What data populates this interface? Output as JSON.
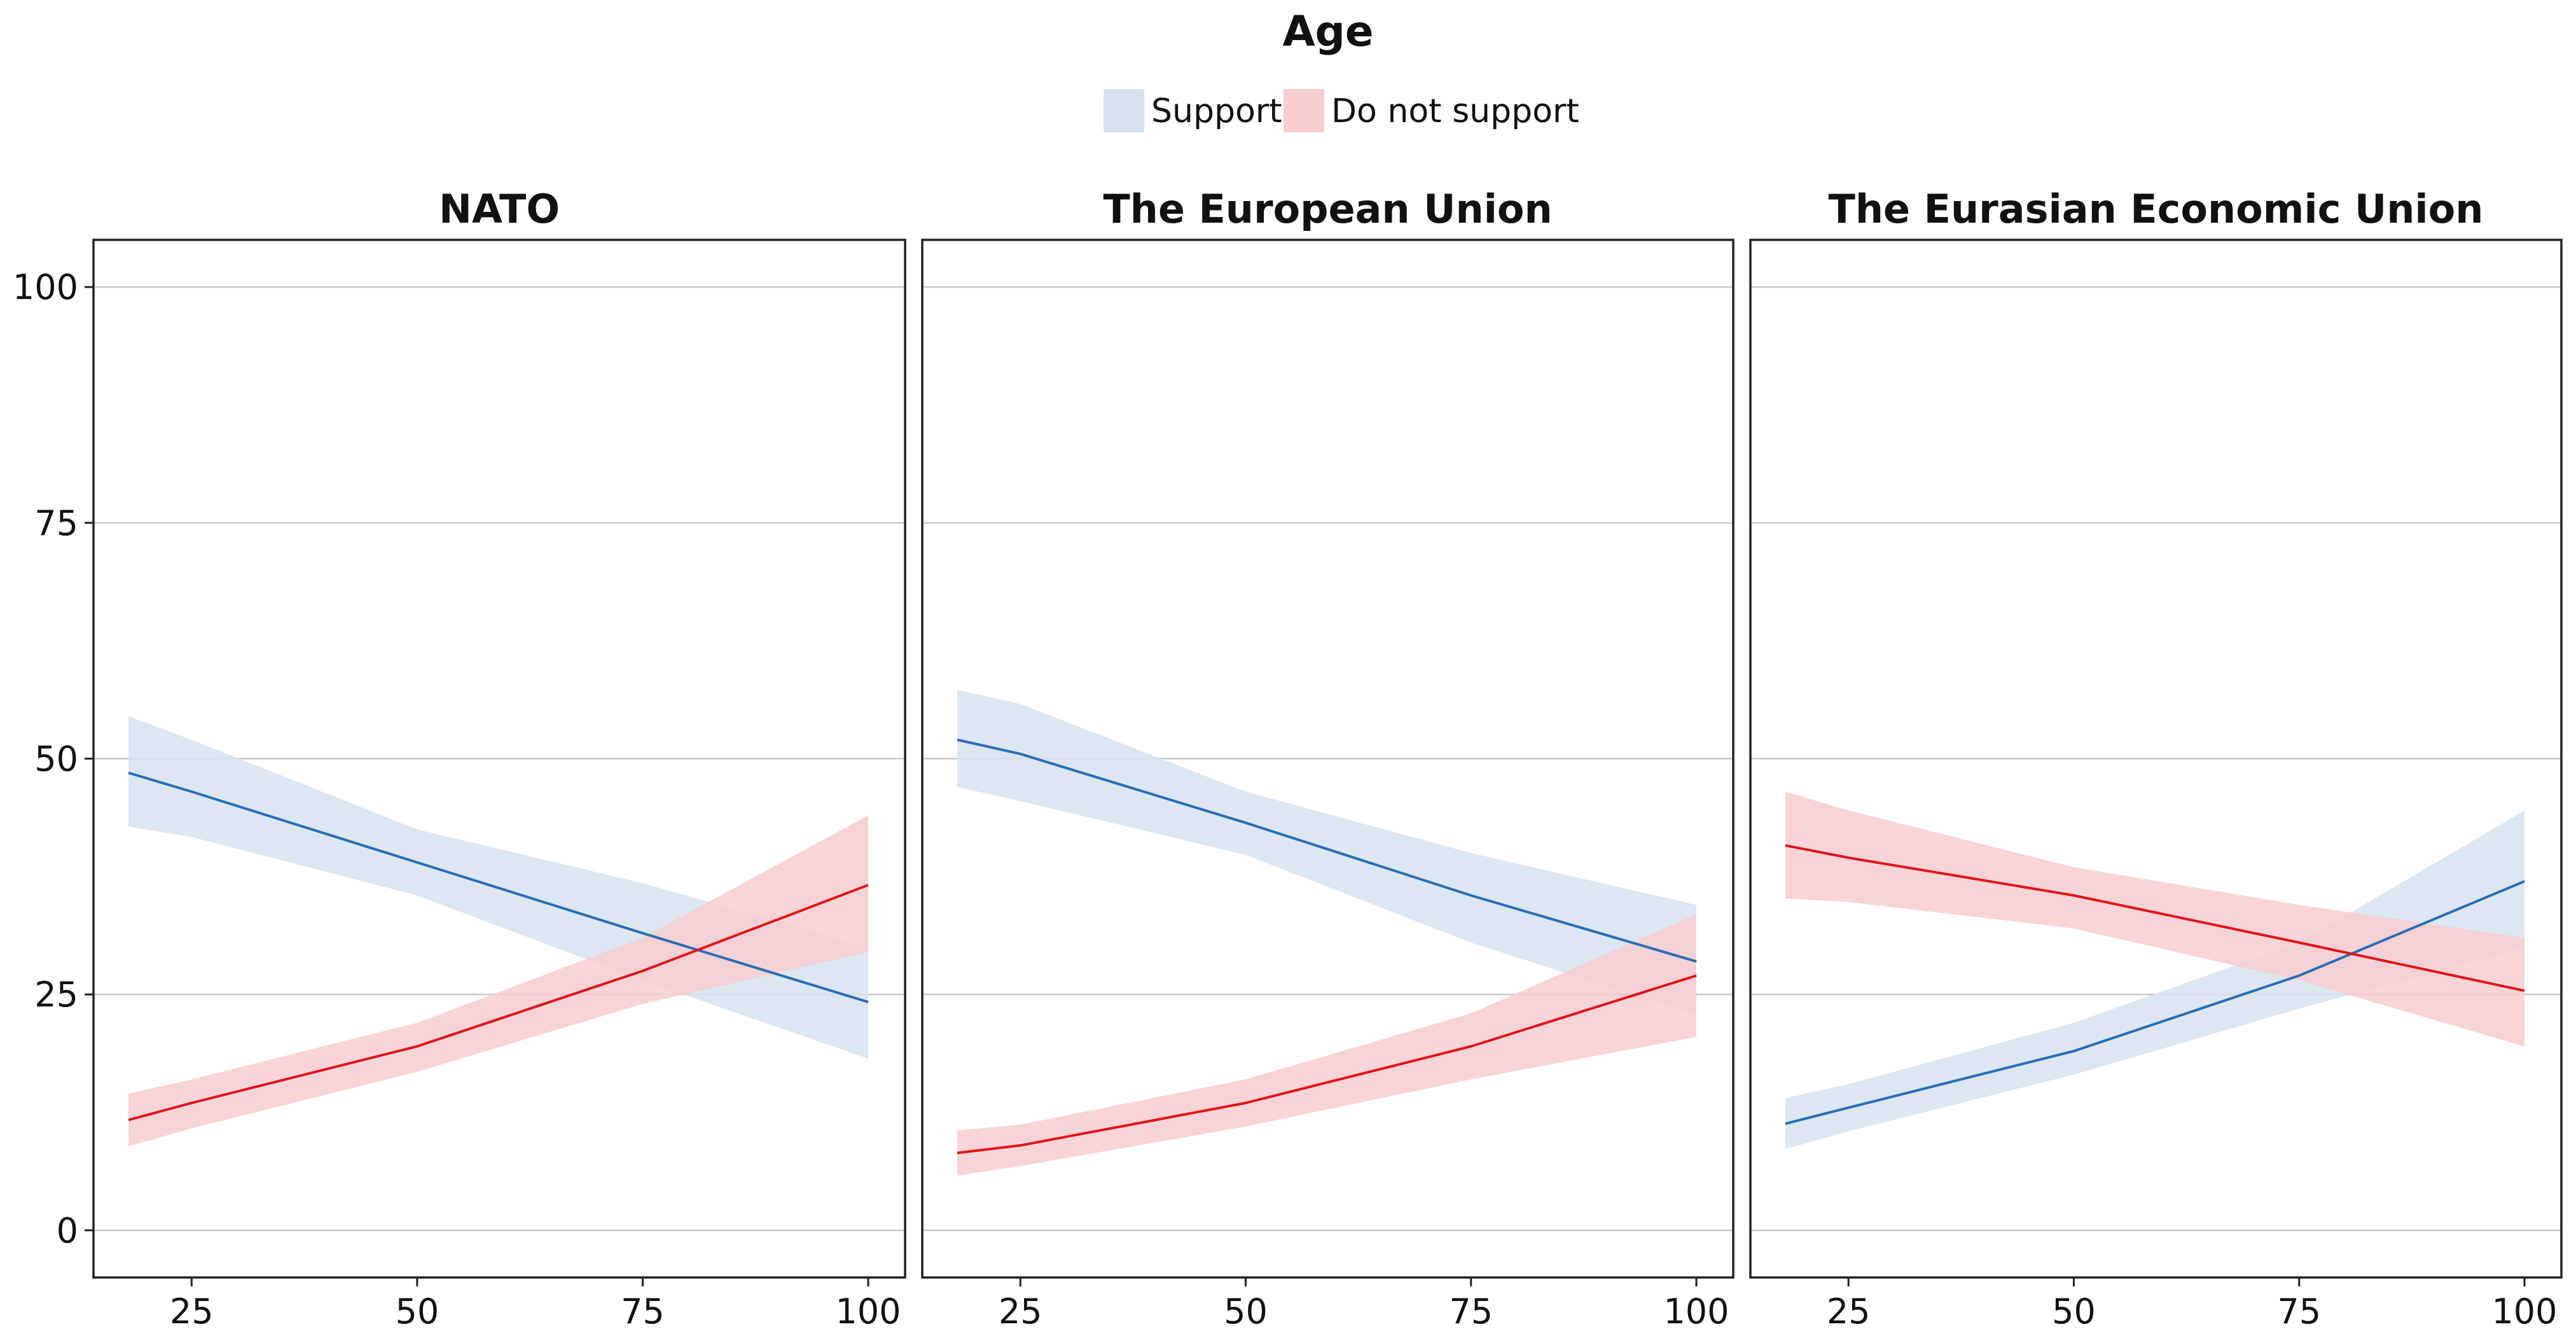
{
  "chart_data": {
    "type": "line",
    "title": "Age",
    "legend_position": "top",
    "grid": true,
    "colors": {
      "support_line": "#2a6db5",
      "support_band": "#d6e3ef",
      "oppose_line": "#e0141b",
      "oppose_band": "#f7cdd0"
    },
    "legend": [
      {
        "key": "support",
        "label": "Support"
      },
      {
        "key": "oppose",
        "label": "Do not support"
      }
    ],
    "x_range": [
      18,
      100
    ],
    "ylim": [
      -5,
      105
    ],
    "xticks": [
      25,
      50,
      75,
      100
    ],
    "yticks": [
      0,
      25,
      50,
      75,
      100
    ],
    "panels": [
      {
        "title": "NATO",
        "series": [
          {
            "key": "support",
            "x": [
              18,
              25,
              50,
              75,
              100
            ],
            "y": [
              48.5,
              46.5,
              39.0,
              31.5,
              24.2
            ],
            "lower": [
              42.8,
              41.7,
              35.5,
              26.5,
              18.2
            ],
            "upper": [
              54.5,
              52.0,
              42.5,
              36.8,
              30.0
            ]
          },
          {
            "key": "oppose",
            "x": [
              18,
              25,
              50,
              75,
              100
            ],
            "y": [
              11.7,
              13.5,
              19.5,
              27.5,
              36.6
            ],
            "lower": [
              8.9,
              10.8,
              16.8,
              24.0,
              29.5
            ],
            "upper": [
              14.5,
              16.0,
              22.0,
              31.0,
              44.0
            ]
          }
        ]
      },
      {
        "title": "The European Union",
        "series": [
          {
            "key": "support",
            "x": [
              18,
              25,
              50,
              75,
              100
            ],
            "y": [
              52.0,
              50.5,
              43.2,
              35.5,
              28.5
            ],
            "lower": [
              47.0,
              45.5,
              39.8,
              30.5,
              22.8
            ],
            "upper": [
              57.3,
              55.8,
              46.5,
              40.0,
              34.5
            ]
          },
          {
            "key": "oppose",
            "x": [
              18,
              25,
              50,
              75,
              100
            ],
            "y": [
              8.2,
              9.0,
              13.5,
              19.5,
              27.0
            ],
            "lower": [
              5.8,
              6.8,
              11.0,
              16.0,
              20.5
            ],
            "upper": [
              10.6,
              11.2,
              16.0,
              23.0,
              33.5
            ]
          }
        ]
      },
      {
        "title": "The Eurasian Economic Union",
        "series": [
          {
            "key": "support",
            "x": [
              18,
              25,
              50,
              75,
              100
            ],
            "y": [
              11.3,
              13.0,
              19.0,
              27.0,
              37.0
            ],
            "lower": [
              8.6,
              10.5,
              16.5,
              23.5,
              30.0
            ],
            "upper": [
              14.0,
              15.5,
              22.0,
              30.5,
              44.5
            ]
          },
          {
            "key": "oppose",
            "x": [
              18,
              25,
              50,
              75,
              100
            ],
            "y": [
              40.8,
              39.5,
              35.5,
              30.5,
              25.4
            ],
            "lower": [
              35.2,
              34.8,
              32.0,
              26.5,
              19.5
            ],
            "upper": [
              46.5,
              44.5,
              38.5,
              34.5,
              31.0
            ]
          }
        ]
      }
    ]
  }
}
